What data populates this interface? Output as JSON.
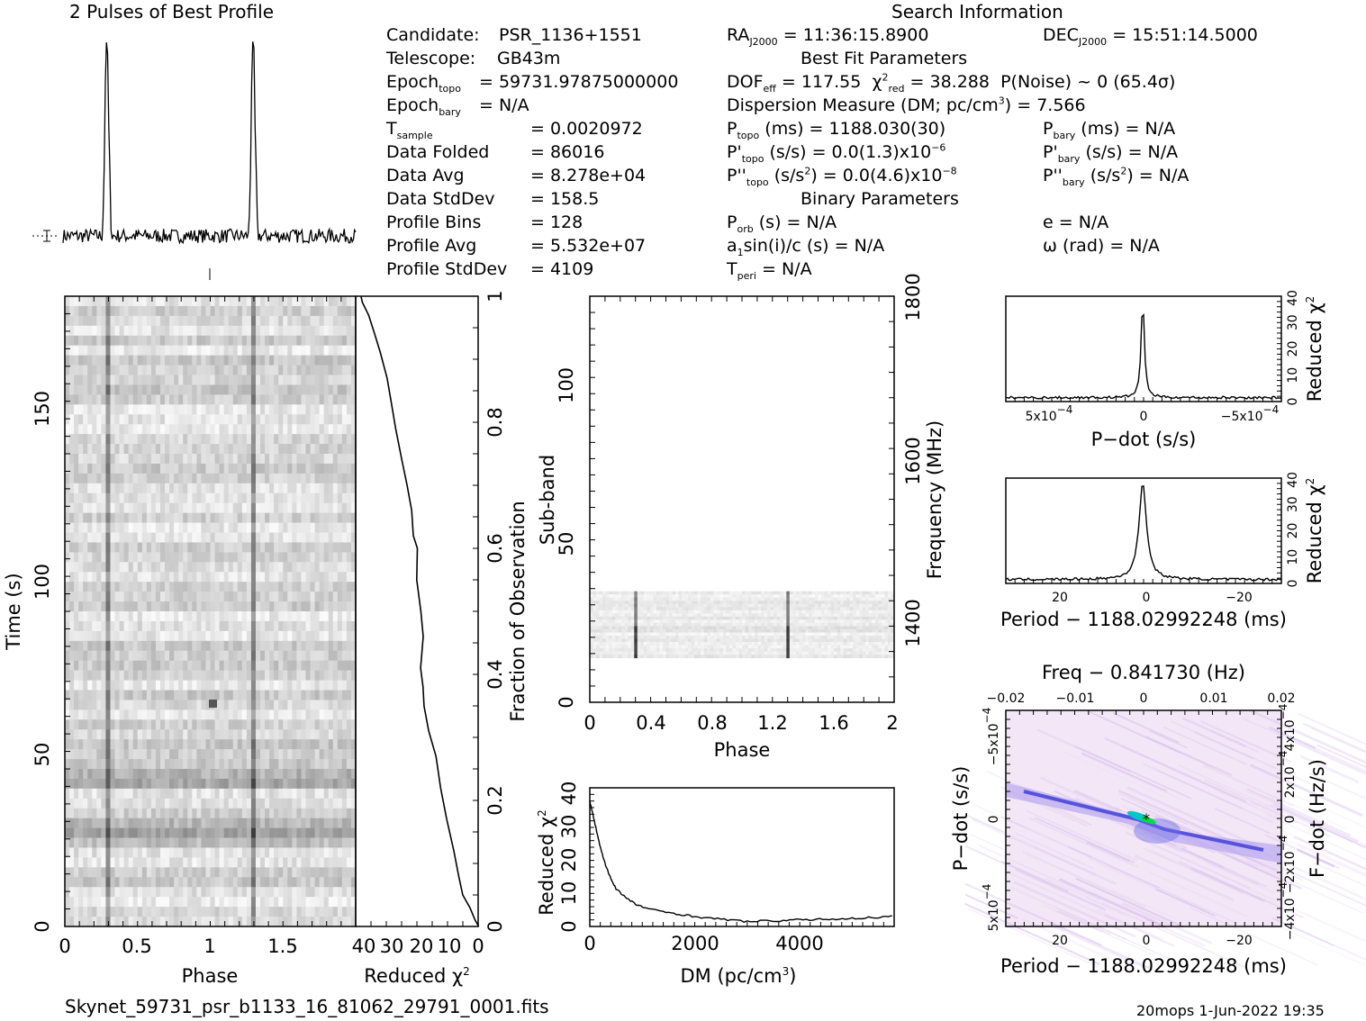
{
  "header": {
    "profile_title": "2 Pulses of Best Profile",
    "search_info_title": "Search Information",
    "best_fit_title": "Best Fit Parameters",
    "binary_title": "Binary Parameters",
    "filename": "Skynet_59731_psr_b1133_16_81062_29791_0001.fits",
    "footer_stamp": "20mops   1-Jun-2022 19:35"
  },
  "info_left": [
    {
      "label": "Candidate:",
      "value": "PSR_1136+1551"
    },
    {
      "label": "Telescope:",
      "value": "GB43m"
    },
    {
      "label": "Epoch",
      "sub": "topo",
      "eq": "=",
      "value": "59731.97875000000"
    },
    {
      "label": "Epoch",
      "sub": "bary",
      "eq": "=",
      "value": "N/A"
    },
    {
      "label": "T",
      "sub": "sample",
      "eq": "=",
      "value": "0.0020972"
    },
    {
      "label": "Data Folded",
      "eq": "=",
      "value": "86016"
    },
    {
      "label": "Data Avg",
      "eq": "=",
      "value": "8.278e+04"
    },
    {
      "label": "Data StdDev",
      "eq": "=",
      "value": "158.5"
    },
    {
      "label": "Profile Bins",
      "eq": "=",
      "value": "128"
    },
    {
      "label": "Profile Avg",
      "eq": "=",
      "value": "5.532e+07"
    },
    {
      "label": "Profile StdDev",
      "eq": "=",
      "value": "4109"
    }
  ],
  "info_mid": {
    "ra_label": "RA",
    "ra_sub": "J2000",
    "ra_value": "= 11:36:15.8900",
    "dof_label": "DOF",
    "dof_sub": "eff",
    "dof_value": "= 117.55",
    "chi_label": "χ",
    "chi_sup": "2",
    "chi_sub": "red",
    "chi_value": "= 38.288",
    "pnoise": "P(Noise) ~ 0    (65.4σ)",
    "dm_text": "Dispersion Measure (DM; pc/cm",
    "dm_sup": "3",
    "dm_value": ") = 7.566",
    "ptopo_label": "P",
    "ptopo_sub": "topo",
    "ptopo_value": "(ms) =  1188.030(30)",
    "pdot_label": "P'",
    "pdot_sub": "topo",
    "pdot_value": "(s/s) = 0.0(1.3)x10",
    "pdot_exp": "−6",
    "pddot_label": "P''",
    "pddot_sub": "topo",
    "pddot_value": "(s/s",
    "pddot_sup": "2",
    "pddot_value2": ") = 0.0(4.6)x10",
    "pddot_exp": "−8",
    "porb_label": "P",
    "porb_sub": "orb",
    "porb_value": "(s) = N/A",
    "a1_label": "a",
    "a1_sub": "1",
    "a1_value": "sin(i)/c (s) = N/A",
    "tperi_label": "T",
    "tperi_sub": "peri",
    "tperi_value": "= N/A"
  },
  "info_right": {
    "dec_label": "DEC",
    "dec_sub": "J2000",
    "dec_value": "= 15:51:14.5000",
    "pbary_label": "P",
    "pbary_sub": "bary",
    "pbary_value": "(ms) = N/A",
    "pdbary_label": "P'",
    "pdbary_sub": "bary",
    "pdbary_value": "(s/s) = N/A",
    "pddbary_label": "P''",
    "pddbary_sub": "bary",
    "pddbary_value": "(s/s",
    "pddbary_sup": "2",
    "pddbary_value2": ") = N/A",
    "e_value": "e = N/A",
    "omega_value": "ω (rad) = N/A"
  },
  "chart_data": [
    {
      "type": "line",
      "title": "2 Pulses of Best Profile",
      "xlim": [
        0,
        2
      ],
      "peaks_phase": [
        0.3,
        1.3
      ],
      "noise_level": "flat with two narrow pulses"
    },
    {
      "type": "heatmap",
      "xlabel": "Phase",
      "ylabel": "Time (s)",
      "xlim": [
        0,
        2
      ],
      "ylim": [
        0,
        180
      ],
      "x_ticks": [
        "0",
        "0.5",
        "1",
        "1.5"
      ],
      "y_ticks": [
        "0",
        "50",
        "100",
        "150"
      ],
      "pulse_phase": [
        0.3,
        1.3
      ]
    },
    {
      "type": "line",
      "xlabel": "Reduced χ",
      "xlabel_sup": "2",
      "ylabel": "Fraction of Observation",
      "xlim": [
        40,
        0
      ],
      "ylim": [
        0,
        1
      ],
      "x_ticks": [
        "40",
        "30",
        "20",
        "10",
        "0"
      ],
      "y_ticks": [
        "0",
        "0.2",
        "0.4",
        "0.6",
        "0.8",
        "1"
      ],
      "points": [
        [
          0,
          0
        ],
        [
          1.2,
          0.01
        ],
        [
          3,
          0.03
        ],
        [
          5,
          0.05
        ],
        [
          6.5,
          0.08
        ],
        [
          8,
          0.12
        ],
        [
          10,
          0.17
        ],
        [
          12,
          0.22
        ],
        [
          14,
          0.27
        ],
        [
          16,
          0.31
        ],
        [
          17.5,
          0.35
        ],
        [
          18,
          0.38
        ],
        [
          19,
          0.41
        ],
        [
          18,
          0.46
        ],
        [
          19,
          0.5
        ],
        [
          20,
          0.55
        ],
        [
          20,
          0.6
        ],
        [
          21,
          0.62
        ],
        [
          22,
          0.66
        ],
        [
          23,
          0.7
        ],
        [
          25,
          0.74
        ],
        [
          27,
          0.79
        ],
        [
          28.5,
          0.83
        ],
        [
          30,
          0.87
        ],
        [
          32,
          0.91
        ],
        [
          34,
          0.94
        ],
        [
          36,
          0.97
        ],
        [
          38,
          0.99
        ],
        [
          38.3,
          1.0
        ]
      ]
    },
    {
      "type": "heatmap",
      "xlabel": "Phase",
      "ylabel": "Sub-band",
      "y2label": "Frequency (MHz)",
      "xlim": [
        0,
        2
      ],
      "ylim": [
        0,
        128
      ],
      "x_ticks": [
        "0",
        "0.4",
        "0.8",
        "1.2",
        "1.6",
        "2"
      ],
      "y_ticks": [
        "0",
        "50",
        "100"
      ],
      "y2_ticks": [
        "1400",
        "1600",
        "1800"
      ],
      "data_band": [
        14,
        35
      ],
      "pulse_phase": [
        0.3,
        1.3
      ]
    },
    {
      "type": "line",
      "xlabel": "DM (pc/cm",
      "xlabel_sup": "3",
      "xlabel_end": ")",
      "ylabel": "Reduced χ",
      "ylabel_sup": "2",
      "xlim": [
        0,
        5800
      ],
      "ylim": [
        0,
        42
      ],
      "x_ticks": [
        "0",
        "2000",
        "4000"
      ],
      "y_ticks": [
        "0",
        "10",
        "20",
        "30",
        "40"
      ],
      "points": [
        [
          0,
          38
        ],
        [
          100,
          31
        ],
        [
          200,
          24
        ],
        [
          300,
          18.5
        ],
        [
          400,
          14.5
        ],
        [
          500,
          11.5
        ],
        [
          700,
          8.5
        ],
        [
          900,
          6.5
        ],
        [
          1200,
          5.0
        ],
        [
          1600,
          4.0
        ],
        [
          2000,
          3.0
        ],
        [
          2500,
          2.2
        ],
        [
          3000,
          1.5
        ],
        [
          3500,
          1.7
        ],
        [
          4000,
          2.0
        ],
        [
          4500,
          2.2
        ],
        [
          5000,
          2.4
        ],
        [
          5500,
          2.8
        ],
        [
          5800,
          3.0
        ]
      ]
    },
    {
      "type": "line",
      "xlabel": "P−dot (s/s)",
      "ylabel": "Reduced χ",
      "ylabel_sup": "2",
      "x_ticks": [
        "5x10",
        "0",
        "−5x10"
      ],
      "x_tick_exp": "−4",
      "y_ticks": [
        "0",
        "10",
        "20",
        "30",
        "40"
      ],
      "xlim": [
        0.0007,
        -0.0007
      ],
      "ylim": [
        0,
        40
      ],
      "peak": [
        0,
        38.3
      ]
    },
    {
      "type": "line",
      "xlabel": "Period − 1188.02992248 (ms)",
      "ylabel": "Reduced χ",
      "ylabel_sup": "2",
      "x_ticks": [
        "20",
        "0",
        "−20"
      ],
      "y_ticks": [
        "0",
        "10",
        "20",
        "30",
        "40"
      ],
      "xlim": [
        32,
        -31
      ],
      "ylim": [
        0,
        40
      ],
      "peak": [
        0,
        38.3
      ]
    },
    {
      "type": "heatmap",
      "xlabel": "Period − 1188.02992248 (ms)",
      "x2label": "Freq − 0.841730 (Hz)",
      "ylabel": "P−dot (s/s)",
      "y2label": "F−dot (Hz/s)",
      "x_ticks": [
        "20",
        "0",
        "−20"
      ],
      "x2_ticks": [
        "−0.02",
        "−0.01",
        "0",
        "0.01",
        "0.02"
      ],
      "y_ticks": [
        "−5x10",
        "0",
        "5x10"
      ],
      "y_tick_exp": "−4",
      "y2_ticks": [
        "4x10",
        "2x10",
        "0",
        "−2x10",
        "−4x10"
      ],
      "y2_tick_exp": "−4",
      "peak": [
        0,
        0
      ]
    }
  ]
}
